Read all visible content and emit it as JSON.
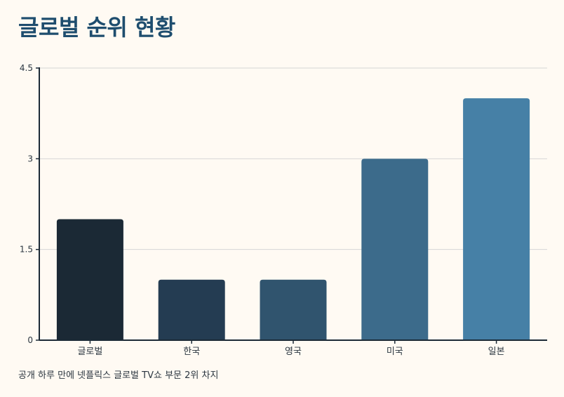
{
  "chart_data": {
    "type": "bar",
    "title": "글로벌 순위 현황",
    "caption": "공개 하루 만에 넷플릭스 글로벌 TV쇼 부문 2위 차지",
    "categories": [
      "글로벌",
      "한국",
      "영국",
      "미국",
      "일본"
    ],
    "values": [
      2,
      1,
      1,
      3,
      4
    ],
    "ylim": [
      0,
      4.5
    ],
    "yticks": [
      "0",
      "1.5",
      "3",
      "4.5"
    ],
    "ytick_values": [
      0,
      1.5,
      3,
      4.5
    ],
    "xlabel": "",
    "ylabel": "",
    "grid": true,
    "bar_colors": [
      "#1b2935",
      "#243c52",
      "#30546e",
      "#3c6b8b",
      "#4680a6"
    ],
    "gridline_color": "#d6d6d6",
    "axis_color": "#1c2a36"
  }
}
